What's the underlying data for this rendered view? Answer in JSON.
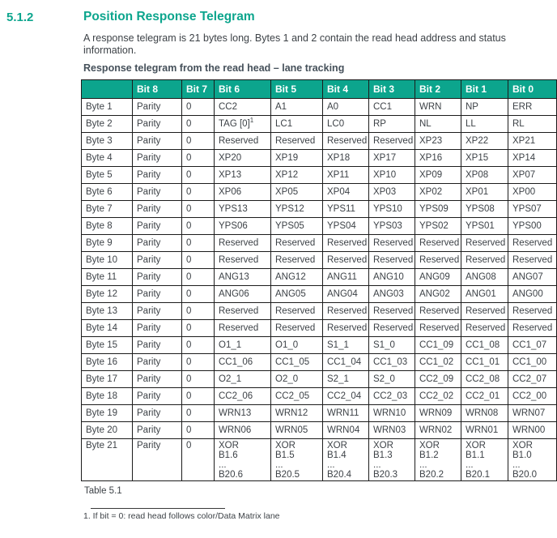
{
  "page": {
    "section_number": "5.1.2",
    "title": "Position Response Telegram",
    "intro": "A response telegram is 21 bytes long. Bytes 1 and 2 contain the read head address and status information.",
    "table_title": "Response telegram from the read head – lane tracking",
    "caption": "Table 5.1",
    "footnote": "1. If bit = 0: read head follows color/Data Matrix lane"
  },
  "colors": {
    "accent": "#0ca58d",
    "body_text": "#3d4247",
    "subtitle_text": "#45505a",
    "table_header_text": "#ffffff",
    "border": "#1c1c1c"
  },
  "table": {
    "headers": [
      "",
      "Bit 8",
      "Bit 7",
      "Bit 6",
      "Bit 5",
      "Bit 4",
      "Bit 3",
      "Bit 2",
      "Bit 1",
      "Bit 0"
    ],
    "rows": [
      {
        "label": "Byte 1",
        "cells": [
          "Parity",
          "0",
          "CC2",
          "A1",
          "A0",
          "CC1",
          "WRN",
          "NP",
          "ERR"
        ]
      },
      {
        "label": "Byte 2",
        "cells": [
          "Parity",
          "0",
          "TAG [0]^1",
          "LC1",
          "LC0",
          "RP",
          "NL",
          "LL",
          "RL"
        ]
      },
      {
        "label": "Byte 3",
        "cells": [
          "Parity",
          "0",
          "Reserved",
          "Reserved",
          "Reserved",
          "Reserved",
          "XP23",
          "XP22",
          "XP21"
        ]
      },
      {
        "label": "Byte 4",
        "cells": [
          "Parity",
          "0",
          "XP20",
          "XP19",
          "XP18",
          "XP17",
          "XP16",
          "XP15",
          "XP14"
        ]
      },
      {
        "label": "Byte 5",
        "cells": [
          "Parity",
          "0",
          "XP13",
          "XP12",
          "XP11",
          "XP10",
          "XP09",
          "XP08",
          "XP07"
        ]
      },
      {
        "label": "Byte 6",
        "cells": [
          "Parity",
          "0",
          "XP06",
          "XP05",
          "XP04",
          "XP03",
          "XP02",
          "XP01",
          "XP00"
        ]
      },
      {
        "label": "Byte 7",
        "cells": [
          "Parity",
          "0",
          "YPS13",
          "YPS12",
          "YPS11",
          "YPS10",
          "YPS09",
          "YPS08",
          "YPS07"
        ]
      },
      {
        "label": "Byte 8",
        "cells": [
          "Parity",
          "0",
          "YPS06",
          "YPS05",
          "YPS04",
          "YPS03",
          "YPS02",
          "YPS01",
          "YPS00"
        ]
      },
      {
        "label": "Byte 9",
        "cells": [
          "Parity",
          "0",
          "Reserved",
          "Reserved",
          "Reserved",
          "Reserved",
          "Reserved",
          "Reserved",
          "Reserved"
        ]
      },
      {
        "label": "Byte 10",
        "cells": [
          "Parity",
          "0",
          "Reserved",
          "Reserved",
          "Reserved",
          "Reserved",
          "Reserved",
          "Reserved",
          "Reserved"
        ]
      },
      {
        "label": "Byte 11",
        "cells": [
          "Parity",
          "0",
          "ANG13",
          "ANG12",
          "ANG11",
          "ANG10",
          "ANG09",
          "ANG08",
          "ANG07"
        ]
      },
      {
        "label": "Byte 12",
        "cells": [
          "Parity",
          "0",
          "ANG06",
          "ANG05",
          "ANG04",
          "ANG03",
          "ANG02",
          "ANG01",
          "ANG00"
        ]
      },
      {
        "label": "Byte 13",
        "cells": [
          "Parity",
          "0",
          "Reserved",
          "Reserved",
          "Reserved",
          "Reserved",
          "Reserved",
          "Reserved",
          "Reserved"
        ]
      },
      {
        "label": "Byte 14",
        "cells": [
          "Parity",
          "0",
          "Reserved",
          "Reserved",
          "Reserved",
          "Reserved",
          "Reserved",
          "Reserved",
          "Reserved"
        ]
      },
      {
        "label": "Byte 15",
        "cells": [
          "Parity",
          "0",
          "O1_1",
          "O1_0",
          "S1_1",
          "S1_0",
          "CC1_09",
          "CC1_08",
          "CC1_07"
        ]
      },
      {
        "label": "Byte 16",
        "cells": [
          "Parity",
          "0",
          "CC1_06",
          "CC1_05",
          "CC1_04",
          "CC1_03",
          "CC1_02",
          "CC1_01",
          "CC1_00"
        ]
      },
      {
        "label": "Byte 17",
        "cells": [
          "Parity",
          "0",
          "O2_1",
          "O2_0",
          "S2_1",
          "S2_0",
          "CC2_09",
          "CC2_08",
          "CC2_07"
        ]
      },
      {
        "label": "Byte 18",
        "cells": [
          "Parity",
          "0",
          "CC2_06",
          "CC2_05",
          "CC2_04",
          "CC2_03",
          "CC2_02",
          "CC2_01",
          "CC2_00"
        ]
      },
      {
        "label": "Byte 19",
        "cells": [
          "Parity",
          "0",
          "WRN13",
          "WRN12",
          "WRN11",
          "WRN10",
          "WRN09",
          "WRN08",
          "WRN07"
        ]
      },
      {
        "label": "Byte 20",
        "cells": [
          "Parity",
          "0",
          "WRN06",
          "WRN05",
          "WRN04",
          "WRN03",
          "WRN02",
          "WRN01",
          "WRN00"
        ]
      },
      {
        "label": "Byte 21",
        "cells": [
          "Parity",
          "0",
          "XOR\nB1.6\n...\nB20.6",
          "XOR\nB1.5\n...\nB20.5",
          "XOR\nB1.4\n...\nB20.4",
          "XOR\nB1.3\n...\nB20.3",
          "XOR\nB1.2\n...\nB20.2",
          "XOR\nB1.1\n...\nB20.1",
          "XOR\nB1.0\n...\nB20.0"
        ]
      }
    ]
  }
}
